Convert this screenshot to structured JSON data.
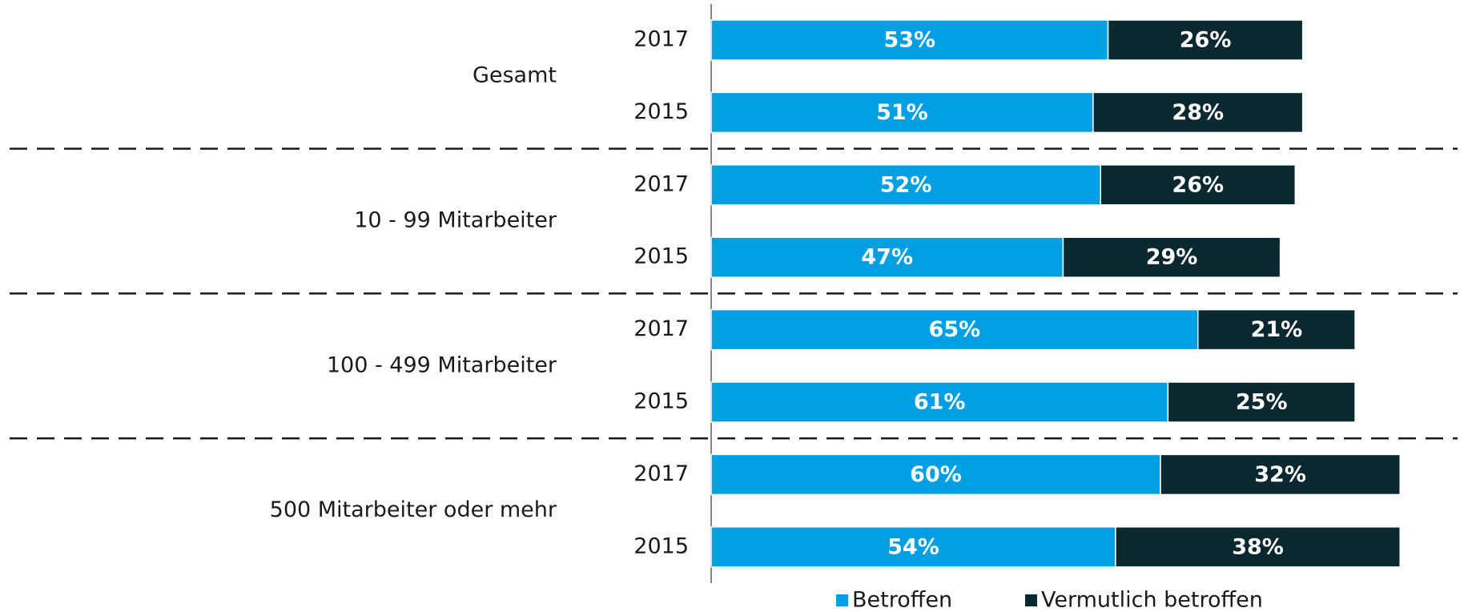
{
  "chart_data": {
    "type": "bar",
    "orientation": "horizontal",
    "stacked": true,
    "groups": [
      "Gesamt",
      "10 - 99 Mitarbeiter",
      "100 - 499 Mitarbeiter",
      "500 Mitarbeiter oder mehr"
    ],
    "categories": [
      "2017",
      "2015",
      "2017",
      "2015",
      "2017",
      "2015",
      "2017",
      "2015"
    ],
    "series": [
      {
        "name": "Betroffen",
        "color": "#009fe3",
        "values": [
          53,
          51,
          52,
          47,
          65,
          61,
          60,
          54
        ],
        "value_labels": [
          "53%",
          "51%",
          "52%",
          "47%",
          "65%",
          "61%",
          "60%",
          "54%"
        ]
      },
      {
        "name": "Vermutlich betroffen",
        "color": "#0a2830",
        "values": [
          26,
          28,
          26,
          29,
          21,
          25,
          32,
          38
        ],
        "value_labels": [
          "26%",
          "28%",
          "26%",
          "29%",
          "21%",
          "25%",
          "32%",
          "38%"
        ]
      }
    ],
    "xlim": [
      0,
      100
    ],
    "legend": "bottom"
  }
}
